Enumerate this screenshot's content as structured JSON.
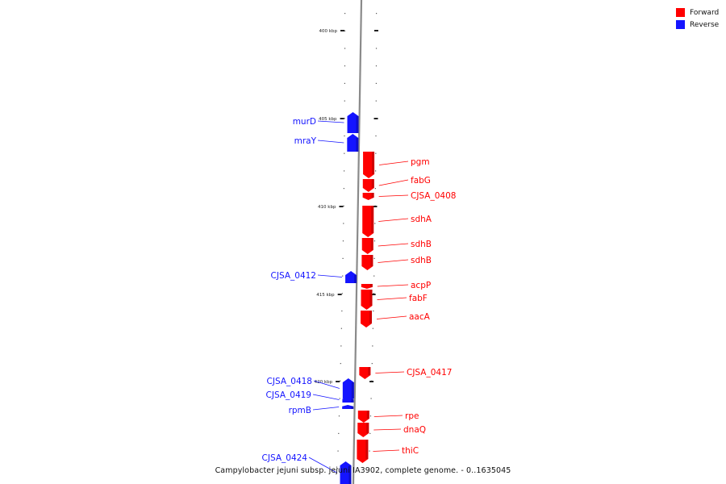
{
  "legend": {
    "forward_label": "Forward",
    "reverse_label": "Reverse",
    "forward_color": "#ff0000",
    "reverse_color": "#1414ff"
  },
  "footer": {
    "caption": "Campylobacter jejuni subsp. jejuni IA3902, complete genome. - 0..1635045"
  },
  "scale_labels": [
    "400 kbp",
    "405 kbp",
    "410 kbp",
    "415 kbp",
    "420 kbp"
  ],
  "genes": [
    {
      "name": "murD",
      "strand": "reverse"
    },
    {
      "name": "mraY",
      "strand": "reverse"
    },
    {
      "name": "pgm",
      "strand": "forward"
    },
    {
      "name": "fabG",
      "strand": "forward"
    },
    {
      "name": "CJSA_0408",
      "strand": "forward"
    },
    {
      "name": "sdhA",
      "strand": "forward"
    },
    {
      "name": "sdhB",
      "strand": "forward"
    },
    {
      "name": "sdhB",
      "strand": "forward"
    },
    {
      "name": "CJSA_0412",
      "strand": "reverse"
    },
    {
      "name": "acpP",
      "strand": "forward"
    },
    {
      "name": "fabF",
      "strand": "forward"
    },
    {
      "name": "aacA",
      "strand": "forward"
    },
    {
      "name": "CJSA_0417",
      "strand": "forward"
    },
    {
      "name": "CJSA_0418",
      "strand": "reverse"
    },
    {
      "name": "CJSA_0419",
      "strand": "reverse"
    },
    {
      "name": "rpmB",
      "strand": "reverse"
    },
    {
      "name": "rpe",
      "strand": "forward"
    },
    {
      "name": "dnaQ",
      "strand": "forward"
    },
    {
      "name": "thiC",
      "strand": "forward"
    },
    {
      "name": "CJSA_0424",
      "strand": "reverse"
    }
  ]
}
